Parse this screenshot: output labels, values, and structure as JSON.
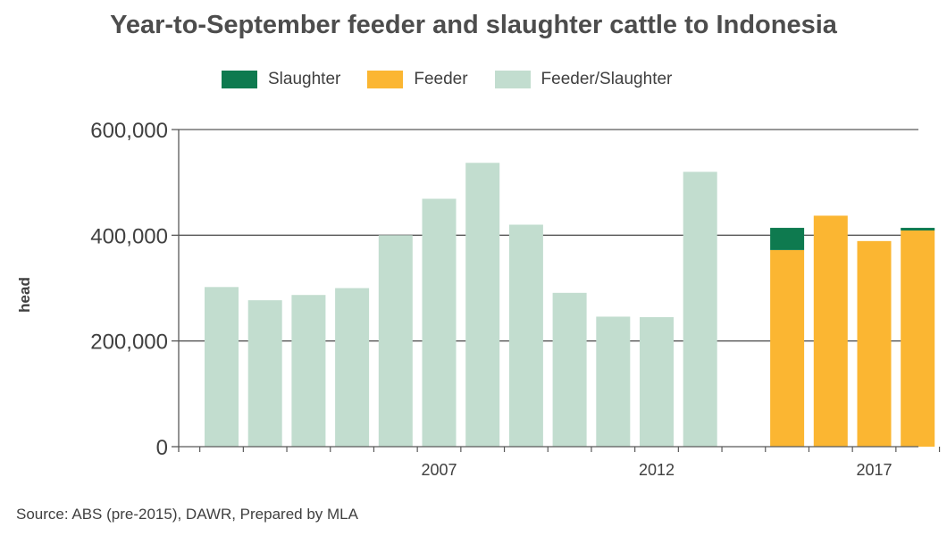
{
  "chart_data": {
    "type": "bar",
    "stacked": true,
    "title": "Year-to-September feeder and slaughter cattle to Indonesia",
    "xlabel": "",
    "ylabel": "head",
    "ylim": [
      0,
      600000
    ],
    "yticks": [
      0,
      200000,
      400000,
      600000
    ],
    "ytick_labels": [
      "0",
      "200,000",
      "400,000",
      "600,000"
    ],
    "xticks": [
      2007,
      2012,
      2017
    ],
    "xtick_labels": [
      "2007",
      "2012",
      "2017"
    ],
    "categories": [
      2002,
      2003,
      2004,
      2005,
      2006,
      2007,
      2008,
      2009,
      2010,
      2011,
      2012,
      2013,
      2014,
      2015,
      2016,
      2017,
      2018
    ],
    "grid": "horizontal",
    "legend_position": "top",
    "series": [
      {
        "name": "Slaughter",
        "color": "#0e7a4f",
        "values": [
          0,
          0,
          0,
          0,
          0,
          0,
          0,
          0,
          0,
          0,
          0,
          0,
          0,
          42000,
          0,
          0,
          5000
        ]
      },
      {
        "name": "Feeder",
        "color": "#fbb632",
        "values": [
          0,
          0,
          0,
          0,
          0,
          0,
          0,
          0,
          0,
          0,
          0,
          0,
          0,
          372000,
          437000,
          389000,
          409000
        ]
      },
      {
        "name": "Feeder/Slaughter",
        "color": "#c2ddcf",
        "values": [
          302000,
          277000,
          287000,
          300000,
          400000,
          469000,
          537000,
          420000,
          291000,
          246000,
          245000,
          520000,
          0,
          0,
          0,
          0,
          0
        ]
      }
    ]
  },
  "source_note": "Source: ABS (pre-2015), DAWR, Prepared by MLA"
}
